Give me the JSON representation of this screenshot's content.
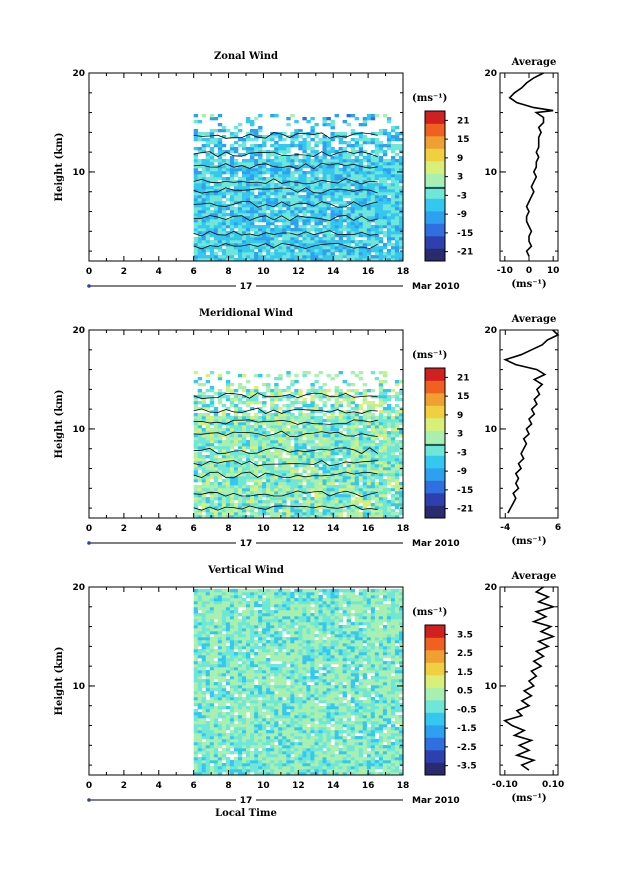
{
  "chart_data": [
    {
      "type": "heatmap",
      "title": "Zonal Wind",
      "xlabel": "",
      "ylabel": "Height (km)",
      "xlim": [
        0,
        18
      ],
      "ylim": [
        1,
        20
      ],
      "x_ticks": [
        "0",
        "2",
        "4",
        "6",
        "8",
        "10",
        "12",
        "14",
        "16",
        "18"
      ],
      "y_ticks": [
        "10",
        "20"
      ],
      "date_label": "17",
      "month_label": "Mar 2010",
      "colorbar": {
        "unit": "(ms⁻¹)",
        "ticks": [
          "21",
          "15",
          "9",
          "3",
          "-3",
          "-9",
          "-15",
          "-21"
        ],
        "range": [
          -24,
          24
        ]
      },
      "data_start_hour": 6,
      "profile": {
        "title": "Average",
        "xlabel": "(ms⁻¹)",
        "xlim": [
          -12,
          12
        ],
        "x_ticks": [
          "-10",
          "0",
          "10"
        ],
        "y_ticks": [
          "10",
          "20"
        ],
        "values": [
          [
            0,
            1.5
          ],
          [
            -1,
            2
          ],
          [
            1,
            2.5
          ],
          [
            0,
            3
          ],
          [
            0,
            3.5
          ],
          [
            1,
            4
          ],
          [
            0,
            4.5
          ],
          [
            -1,
            5
          ],
          [
            -1,
            5.5
          ],
          [
            0,
            6
          ],
          [
            -1,
            6.5
          ],
          [
            0,
            7
          ],
          [
            1,
            7.5
          ],
          [
            2,
            8
          ],
          [
            1,
            8.5
          ],
          [
            2,
            9
          ],
          [
            3,
            9.5
          ],
          [
            2,
            10
          ],
          [
            3,
            10.5
          ],
          [
            3,
            11
          ],
          [
            4,
            11.5
          ],
          [
            3,
            12
          ],
          [
            4,
            12.5
          ],
          [
            4,
            13
          ],
          [
            4,
            13.5
          ],
          [
            5,
            14
          ],
          [
            4,
            14.5
          ],
          [
            6,
            15
          ],
          [
            6,
            15.5
          ],
          [
            3,
            16
          ],
          [
            10,
            16.2
          ],
          [
            2,
            16.5
          ],
          [
            -5,
            17
          ],
          [
            -8,
            17.5
          ],
          [
            -6,
            18
          ],
          [
            -3,
            18.5
          ],
          [
            -1,
            19
          ],
          [
            2,
            19.5
          ],
          [
            6,
            20
          ]
        ]
      }
    },
    {
      "type": "heatmap",
      "title": "Meridional Wind",
      "xlabel": "",
      "ylabel": "Height (km)",
      "xlim": [
        0,
        18
      ],
      "ylim": [
        1,
        20
      ],
      "x_ticks": [
        "0",
        "2",
        "4",
        "6",
        "8",
        "10",
        "12",
        "14",
        "16",
        "18"
      ],
      "y_ticks": [
        "10",
        "20"
      ],
      "date_label": "17",
      "month_label": "Mar 2010",
      "colorbar": {
        "unit": "(ms⁻¹)",
        "ticks": [
          "21",
          "15",
          "9",
          "3",
          "-3",
          "-9",
          "-15",
          "-21"
        ],
        "range": [
          -24,
          24
        ]
      },
      "data_start_hour": 6,
      "profile": {
        "title": "Average",
        "xlabel": "(ms⁻¹)",
        "xlim": [
          -5,
          6
        ],
        "x_ticks": [
          "-4",
          "6"
        ],
        "y_ticks": [
          "10",
          "20"
        ],
        "values": [
          [
            -3.5,
            1.5
          ],
          [
            -3,
            2
          ],
          [
            -2.5,
            2.5
          ],
          [
            -2,
            3
          ],
          [
            -2.5,
            3.5
          ],
          [
            -1.5,
            4
          ],
          [
            -2,
            4.5
          ],
          [
            -1.5,
            5
          ],
          [
            -2,
            5.5
          ],
          [
            -1,
            6
          ],
          [
            -1.5,
            6.5
          ],
          [
            -0.5,
            7
          ],
          [
            -1,
            7.5
          ],
          [
            -0.5,
            8
          ],
          [
            0,
            8.5
          ],
          [
            -0.5,
            9
          ],
          [
            0.5,
            9.5
          ],
          [
            0,
            10
          ],
          [
            1,
            10.5
          ],
          [
            0.5,
            11
          ],
          [
            1.5,
            11.5
          ],
          [
            1,
            12
          ],
          [
            2,
            12.5
          ],
          [
            1.5,
            13
          ],
          [
            2.5,
            13.5
          ],
          [
            2,
            14
          ],
          [
            3,
            14.5
          ],
          [
            1.5,
            15
          ],
          [
            3.5,
            15.5
          ],
          [
            2,
            16
          ],
          [
            -2,
            16.5
          ],
          [
            -4,
            17
          ],
          [
            -1,
            17.5
          ],
          [
            1,
            18
          ],
          [
            3,
            18.5
          ],
          [
            4,
            19
          ],
          [
            6,
            19.5
          ],
          [
            5,
            20
          ]
        ]
      }
    },
    {
      "type": "heatmap",
      "title": "Vertical Wind",
      "xlabel": "Local Time",
      "ylabel": "Height (km)",
      "xlim": [
        0,
        18
      ],
      "ylim": [
        1,
        20
      ],
      "x_ticks": [
        "0",
        "2",
        "4",
        "6",
        "8",
        "10",
        "12",
        "14",
        "16",
        "18"
      ],
      "y_ticks": [
        "10",
        "20"
      ],
      "date_label": "17",
      "month_label": "Mar 2010",
      "colorbar": {
        "unit": "(ms⁻¹)",
        "ticks": [
          "3.5",
          "2.5",
          "1.5",
          "0.5",
          "-0.5",
          "-1.5",
          "-2.5",
          "-3.5"
        ],
        "range": [
          -4,
          4
        ]
      },
      "data_start_hour": 6,
      "profile": {
        "title": "Average",
        "xlabel": "(ms⁻¹)",
        "xlim": [
          -0.12,
          0.12
        ],
        "x_ticks": [
          "-0.10",
          "0.10"
        ],
        "y_ticks": [
          "10",
          "20"
        ],
        "values": [
          [
            0,
            1.5
          ],
          [
            -0.03,
            2
          ],
          [
            0.02,
            2.5
          ],
          [
            -0.05,
            3
          ],
          [
            0,
            3.5
          ],
          [
            -0.04,
            4
          ],
          [
            0.01,
            4.5
          ],
          [
            -0.06,
            5
          ],
          [
            -0.02,
            5.5
          ],
          [
            -0.07,
            6
          ],
          [
            -0.1,
            6.5
          ],
          [
            -0.03,
            7
          ],
          [
            -0.05,
            7.5
          ],
          [
            0,
            8
          ],
          [
            -0.03,
            8.5
          ],
          [
            0.01,
            9
          ],
          [
            -0.02,
            9.5
          ],
          [
            0.02,
            10
          ],
          [
            0,
            10.5
          ],
          [
            0.03,
            11
          ],
          [
            0.01,
            11.5
          ],
          [
            0.05,
            12
          ],
          [
            0.02,
            12.5
          ],
          [
            0.06,
            13
          ],
          [
            0.03,
            13.5
          ],
          [
            0.08,
            14
          ],
          [
            0.04,
            14.5
          ],
          [
            0.1,
            15
          ],
          [
            0.05,
            15.5
          ],
          [
            0.09,
            16
          ],
          [
            0.02,
            16.5
          ],
          [
            0.07,
            17
          ],
          [
            0.03,
            17.5
          ],
          [
            0.1,
            18
          ],
          [
            0.04,
            18.5
          ],
          [
            0.08,
            19
          ],
          [
            0.03,
            19.5
          ],
          [
            0.06,
            20
          ]
        ]
      }
    }
  ],
  "colors": {
    "scale": [
      "#2a2a6e",
      "#2e3fb0",
      "#2f6fe0",
      "#2ea0f0",
      "#34c8f0",
      "#6ee6d8",
      "#a9f0b0",
      "#d8f07a",
      "#f0d040",
      "#f0a030",
      "#f06020",
      "#d02020"
    ],
    "contour": "#000000"
  }
}
